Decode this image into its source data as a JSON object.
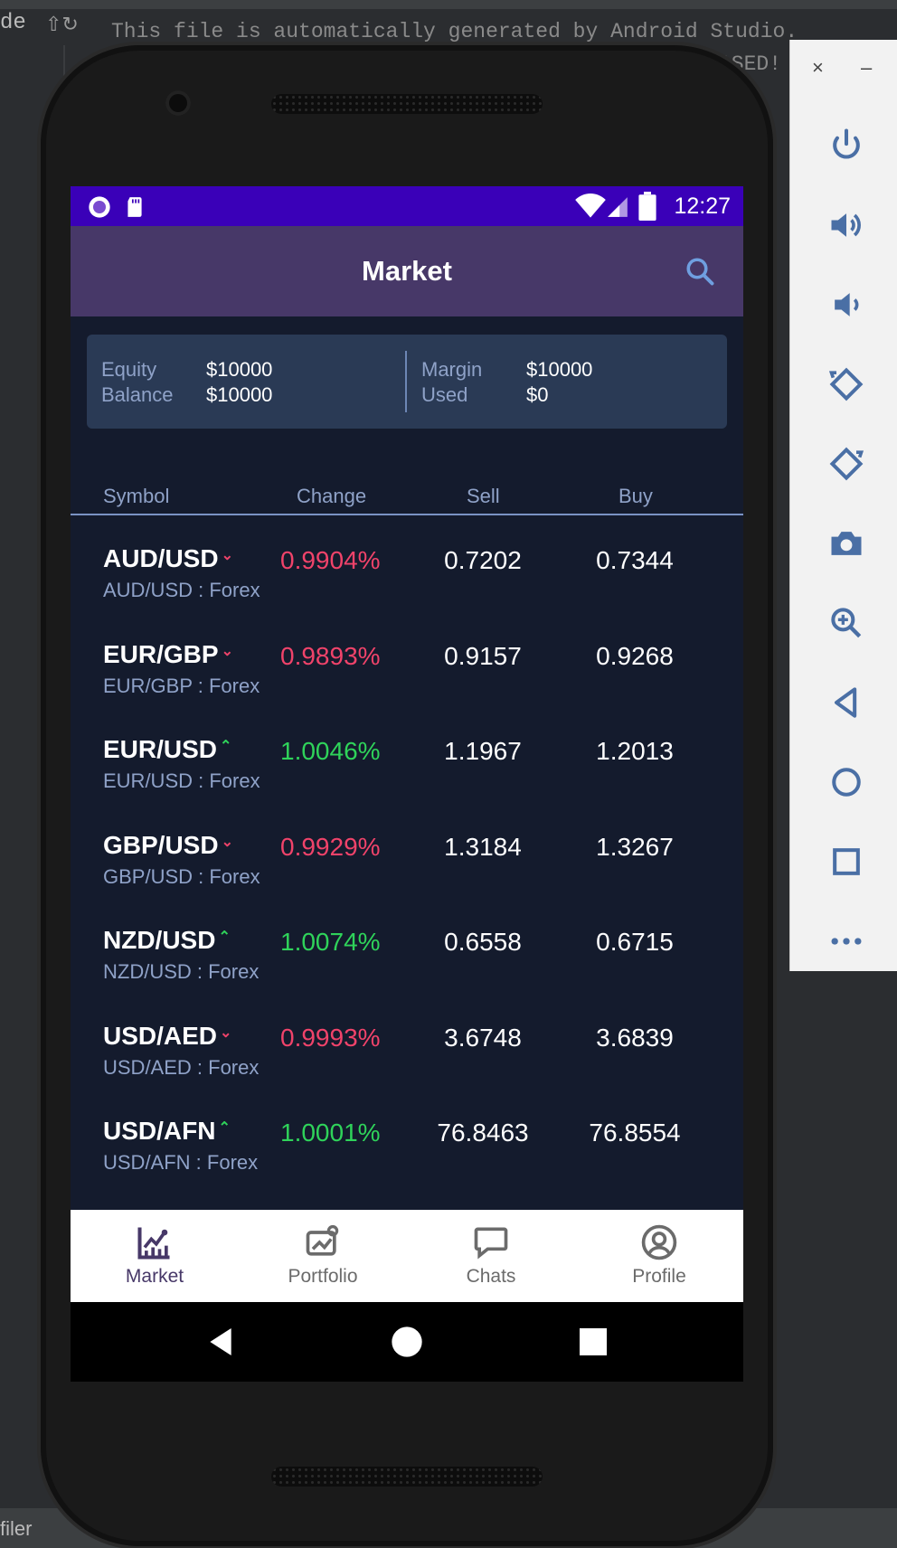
{
  "ide": {
    "left_text": "de",
    "code_line": "This file is automatically generated by Android Studio.",
    "code_line_2": "ASED!",
    "bottom_text": "filer"
  },
  "emulator_toolbar": {
    "close": "×",
    "minimize": "–",
    "buttons": [
      "power-icon",
      "volume-up-icon",
      "volume-down-icon",
      "rotate-left-icon",
      "rotate-right-icon",
      "camera-icon",
      "zoom-icon",
      "back-icon",
      "home-icon",
      "overview-icon",
      "more-icon"
    ]
  },
  "status": {
    "time": "12:27"
  },
  "appbar": {
    "title": "Market"
  },
  "summary": {
    "equity_label": "Equity",
    "equity_value": "$10000",
    "balance_label": "Balance",
    "balance_value": "$10000",
    "margin_label": "Margin",
    "margin_value": "$10000",
    "used_label": "Used",
    "used_value": "$0"
  },
  "table": {
    "headers": {
      "symbol": "Symbol",
      "change": "Change",
      "sell": "Sell",
      "buy": "Buy"
    },
    "rows": [
      {
        "symbol": "AUD/USD",
        "arrow": "⌄",
        "direction": "down",
        "sub": "AUD/USD : Forex",
        "change": "0.9904%",
        "sell": "0.7202",
        "buy": "0.7344"
      },
      {
        "symbol": "EUR/GBP",
        "arrow": "⌄",
        "direction": "down",
        "sub": "EUR/GBP : Forex",
        "change": "0.9893%",
        "sell": "0.9157",
        "buy": "0.9268"
      },
      {
        "symbol": "EUR/USD",
        "arrow": "⌃",
        "direction": "up",
        "sub": "EUR/USD : Forex",
        "change": "1.0046%",
        "sell": "1.1967",
        "buy": "1.2013"
      },
      {
        "symbol": "GBP/USD",
        "arrow": "⌄",
        "direction": "down",
        "sub": "GBP/USD : Forex",
        "change": "0.9929%",
        "sell": "1.3184",
        "buy": "1.3267"
      },
      {
        "symbol": "NZD/USD",
        "arrow": "⌃",
        "direction": "up",
        "sub": "NZD/USD : Forex",
        "change": "1.0074%",
        "sell": "0.6558",
        "buy": "0.6715"
      },
      {
        "symbol": "USD/AED",
        "arrow": "⌄",
        "direction": "down",
        "sub": "USD/AED : Forex",
        "change": "0.9993%",
        "sell": "3.6748",
        "buy": "3.6839"
      },
      {
        "symbol": "USD/AFN",
        "arrow": "⌃",
        "direction": "up",
        "sub": "USD/AFN : Forex",
        "change": "1.0001%",
        "sell": "76.8463",
        "buy": "76.8554"
      }
    ]
  },
  "colors": {
    "down": "#f0436a",
    "up": "#2fd35a",
    "accent": "#473868",
    "status_bar": "#3a00b8"
  },
  "bottom_nav": [
    {
      "label": "Market",
      "icon": "chart-icon",
      "active": true
    },
    {
      "label": "Portfolio",
      "icon": "portfolio-icon",
      "active": false
    },
    {
      "label": "Chats",
      "icon": "chat-icon",
      "active": false
    },
    {
      "label": "Profile",
      "icon": "profile-icon",
      "active": false
    }
  ]
}
